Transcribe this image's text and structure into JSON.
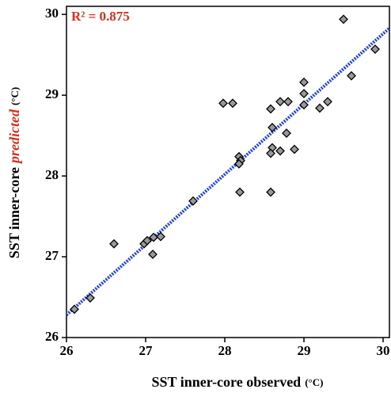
{
  "chart_data": {
    "type": "scatter",
    "annotation": "R² = 0.875",
    "annotation_color": "#d2321e",
    "xlabel": [
      "SST inner-core observed",
      "(°C)"
    ],
    "ylabel": [
      "SST inner-core",
      "predicted",
      "(°C)"
    ],
    "ylabel_accent_color": "#d2321e",
    "x": [
      26.1,
      26.3,
      26.6,
      26.98,
      27.02,
      27.1,
      27.19,
      27.09,
      27.6,
      27.98,
      28.1,
      28.18,
      28.2,
      28.18,
      28.19,
      29.0,
      29.0,
      29.0,
      28.7,
      28.8,
      28.58,
      28.6,
      28.6,
      28.58,
      28.7,
      28.78,
      28.88,
      28.58,
      29.2,
      29.3,
      29.5,
      29.6,
      29.9
    ],
    "y": [
      26.35,
      26.49,
      27.16,
      27.16,
      27.2,
      27.24,
      27.25,
      27.03,
      27.69,
      28.9,
      28.9,
      28.24,
      28.19,
      28.15,
      27.8,
      29.16,
      29.02,
      28.88,
      28.92,
      28.92,
      28.83,
      28.6,
      28.35,
      28.28,
      28.31,
      28.53,
      28.33,
      27.8,
      28.84,
      28.92,
      29.94,
      29.24,
      29.57
    ],
    "marker_color": "#000000",
    "trendline": {
      "x": [
        26,
        30.08
      ],
      "y": [
        26.28,
        29.83
      ],
      "color": "#1f3fd6"
    },
    "xlim": [
      26,
      30.08
    ],
    "xticks": [
      26,
      27,
      28,
      29,
      30
    ],
    "ylim": [
      26,
      30.1
    ],
    "yticks": [
      26,
      27,
      28,
      29,
      30
    ]
  }
}
